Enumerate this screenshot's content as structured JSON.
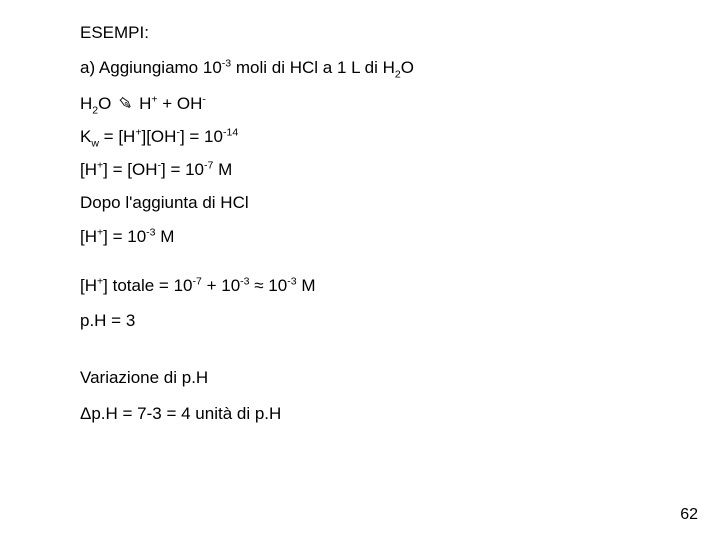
{
  "title": "ESEMPI:",
  "line_a_pre": "a) Aggiungiamo 10",
  "line_a_exp": "-3",
  "line_a_mid": " moli di HCl a 1 L di H",
  "line_a_sub2": "2",
  "line_a_end": "O",
  "eq1_h": "H",
  "eq1_2": "2",
  "eq1_o": "O ",
  "eq1_arrow": "✑",
  "eq1_sp": " H",
  "eq1_plus": "+",
  "eq1_mid": " + OH",
  "eq1_minus": "-",
  "kw_k": "K",
  "kw_w": "w",
  "kw_eq": " = [H",
  "kw_hp": "+",
  "kw_br1": "][OH",
  "kw_om": "-",
  "kw_br2": "] = 10",
  "kw_exp": "-14",
  "hoh_pre": "[H",
  "hoh_p": "+",
  "hoh_mid": "] = [OH",
  "hoh_m": "-",
  "hoh_eq": "] = 10",
  "hoh_exp": "-7",
  "hoh_unit": " M",
  "dopo": "Dopo l'aggiunta di HCl",
  "h3_pre": "[H",
  "h3_p": "+",
  "h3_mid": "] = 10",
  "h3_exp": "-3",
  "h3_unit": " M",
  "tot_pre": "[H",
  "tot_p": "+",
  "tot_mid": "] totale = 10",
  "tot_e7": "-7",
  "tot_plus": " + 10",
  "tot_e3a": "-3",
  "tot_approx": " ≈ 10",
  "tot_e3b": "-3",
  "tot_unit": " M",
  "ph3": "p.H = 3",
  "var_title": "Variazione di p.H",
  "delta": "Δp.H = 7-3 = 4 unità di p.H",
  "pagenum": "62"
}
